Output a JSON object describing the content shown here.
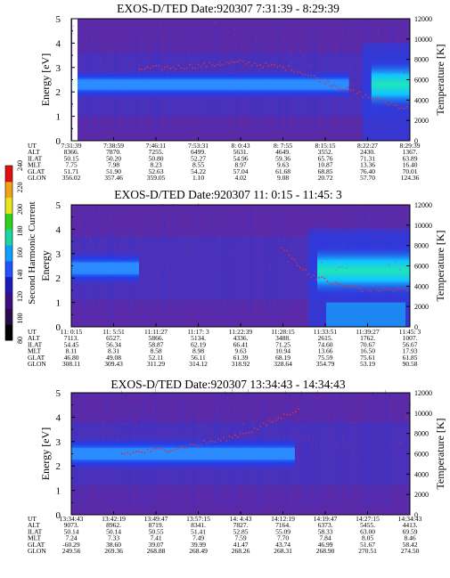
{
  "colorbar": {
    "label": "Second Harmonic Current",
    "ticks": [
      "80",
      "100",
      "120",
      "140",
      "160",
      "180",
      "200",
      "220",
      "240"
    ],
    "colors": [
      "#000000",
      "#2a0a4a",
      "#3b0d80",
      "#1a1ab8",
      "#1f52ff",
      "#0fa0ff",
      "#19d7a0",
      "#2fd11f",
      "#e6e61a",
      "#f2a11a",
      "#e01010"
    ]
  },
  "panel_colors": {
    "background": "#5a2aa8",
    "band": "#1f3ff0",
    "core": "#2a8cff",
    "hot": "#1fe6b8",
    "speck": "#e03030"
  },
  "chart_data": [
    {
      "type": "heatmap",
      "title": "EXOS-D/TED   Date:920307   7:31:39 - 8:29:39",
      "ylabel": "Energy [eV]",
      "y2label": "Temperature [K]",
      "ylim": [
        0,
        5
      ],
      "y2lim": [
        0,
        12000
      ],
      "yticks": [
        "0",
        "1",
        "2",
        "3",
        "4",
        "5"
      ],
      "y2ticks": [
        "0",
        "2000",
        "4000",
        "6000",
        "8000",
        "10000",
        "12000"
      ],
      "row_labels": [
        "UT",
        "ALT",
        "ILAT",
        "MLT",
        "GLAT",
        "GLON"
      ],
      "columns": [
        [
          "7:31:39",
          "8366.",
          "50.15",
          "7.75",
          "51.71",
          "356.02"
        ],
        [
          "7:38:59",
          "7870.",
          "50.20",
          "7.98",
          "51.90",
          "357.46"
        ],
        [
          "7:46:11",
          "7255.",
          "50.80",
          "8.23",
          "52.63",
          "359.05"
        ],
        [
          "7:53:31",
          "6499.",
          "52.27",
          "8.55",
          "54.22",
          "1.10"
        ],
        [
          "8: 0:43",
          "5631.",
          "54.96",
          "8.97",
          "57.04",
          "4.02"
        ],
        [
          "8: 7:55",
          "4649.",
          "59.36",
          "9.63",
          "61.68",
          "9.08"
        ],
        [
          "8:15:15",
          "3552.",
          "65.76",
          "10.87",
          "68.85",
          "20.72"
        ],
        [
          "8:22:27",
          "2430.",
          "71.31",
          "13.36",
          "76.40",
          "57.70"
        ],
        [
          "8:29:39",
          "1367.",
          "63.89",
          "16.40",
          "70.01",
          "124.36"
        ]
      ],
      "features": {
        "band_center_ev": 2.3,
        "band_halfwidth_ev": 0.35,
        "band_end_frac": 0.82,
        "edge_bar": true,
        "hot_region": "right"
      },
      "temperature_trace": [
        [
          0.2,
          7050
        ],
        [
          0.35,
          7300
        ],
        [
          0.5,
          7700
        ],
        [
          0.65,
          7100
        ],
        [
          0.8,
          5200
        ],
        [
          0.86,
          4500
        ],
        [
          0.92,
          3800
        ],
        [
          1.0,
          3100
        ]
      ]
    },
    {
      "type": "heatmap",
      "title": "EXOS-D/TED   Date:920307   11: 0:15 - 11:45: 3",
      "ylabel": "Energy",
      "y2label": "Temperature [K]",
      "ylim": [
        0,
        5
      ],
      "y2lim": [
        0,
        12000
      ],
      "yticks": [
        "0",
        "1",
        "2",
        "3",
        "4",
        "5"
      ],
      "y2ticks": [
        "0",
        "2000",
        "4000",
        "6000",
        "8000",
        "10000",
        "12000"
      ],
      "row_labels": [
        "UT",
        "ALT",
        "ILAT",
        "MLT",
        "GLAT",
        "GLON"
      ],
      "columns": [
        [
          "11: 0:15",
          "7113.",
          "54.45",
          "8.11",
          "46.80",
          "308.11"
        ],
        [
          "11: 5:51",
          "6527.",
          "56.34",
          "8.31",
          "49.08",
          "309.43"
        ],
        [
          "11:11:27",
          "5866.",
          "58.87",
          "8.58",
          "52.11",
          "311.29"
        ],
        [
          "11:17: 3",
          "5134.",
          "62.19",
          "8.98",
          "56.11",
          "314.12"
        ],
        [
          "11:22:39",
          "4336.",
          "66.41",
          "9.63",
          "61.39",
          "318.92"
        ],
        [
          "11:28:15",
          "3488.",
          "71.25",
          "10.94",
          "68.19",
          "328.64"
        ],
        [
          "11:33:51",
          "2615.",
          "74.60",
          "13.66",
          "75.59",
          "354.79"
        ],
        [
          "11:39:27",
          "1762.",
          "70.67",
          "16.50",
          "75.61",
          "53.19"
        ],
        [
          "11:45: 3",
          "1007.",
          "56.67",
          "17.93",
          "61.85",
          "90.58"
        ]
      ],
      "features": {
        "band_center_ev": 2.4,
        "band_halfwidth_ev": 0.4,
        "band_end_frac": 0.2,
        "edge_bar": false,
        "hot_region": "right"
      },
      "temperature_trace": [
        [
          0.62,
          7800
        ],
        [
          0.7,
          5200
        ],
        [
          0.78,
          4200
        ],
        [
          0.86,
          3700
        ],
        [
          1.0,
          3600
        ]
      ]
    },
    {
      "type": "heatmap",
      "title": "EXOS-D/TED   Date:920307   13:34:43 - 14:34:43",
      "ylabel": "Energy [eV]",
      "y2label": "Temperature [K]",
      "ylim": [
        0,
        5
      ],
      "y2lim": [
        0,
        12000
      ],
      "yticks": [
        "0",
        "1",
        "2",
        "3",
        "4",
        "5"
      ],
      "y2ticks": [
        "0",
        "2000",
        "4000",
        "6000",
        "8000",
        "10000",
        "12000"
      ],
      "row_labels": [
        "UT",
        "ALT",
        "ILAT",
        "MLT",
        "GLAT",
        "GLON"
      ],
      "columns": [
        [
          "13:34:43",
          "9073.",
          "50.14",
          "7.24",
          "-60.29",
          "249.56"
        ],
        [
          "13:42:19",
          "8962.",
          "50.14",
          "7.33",
          "38.60",
          "269.36"
        ],
        [
          "13:49:47",
          "8719.",
          "50.55",
          "7.41",
          "39.07",
          "268.88"
        ],
        [
          "13:57:15",
          "8341.",
          "51.41",
          "7.49",
          "39.99",
          "268.49"
        ],
        [
          "14: 4:43",
          "7827.",
          "52.85",
          "7.59",
          "41.47",
          "268.26"
        ],
        [
          "14:12:19",
          "7164.",
          "55.09",
          "7.70",
          "43.74",
          "268.31"
        ],
        [
          "14:19:47",
          "6373.",
          "58.33",
          "7.84",
          "46.99",
          "268.90"
        ],
        [
          "14:27:15",
          "5455.",
          "63.00",
          "8.05",
          "51.67",
          "270.51"
        ],
        [
          "14:34:43",
          "4413.",
          "69.59",
          "8.46",
          "58.42",
          "274.50"
        ]
      ],
      "features": {
        "band_center_ev": 2.5,
        "band_halfwidth_ev": 0.4,
        "band_end_frac": 0.66,
        "edge_bar": false,
        "hot_region": "none"
      },
      "temperature_trace": [
        [
          0.15,
          6000
        ],
        [
          0.3,
          6500
        ],
        [
          0.45,
          7400
        ],
        [
          0.55,
          8500
        ],
        [
          0.62,
          9600
        ],
        [
          0.68,
          10600
        ]
      ]
    }
  ]
}
